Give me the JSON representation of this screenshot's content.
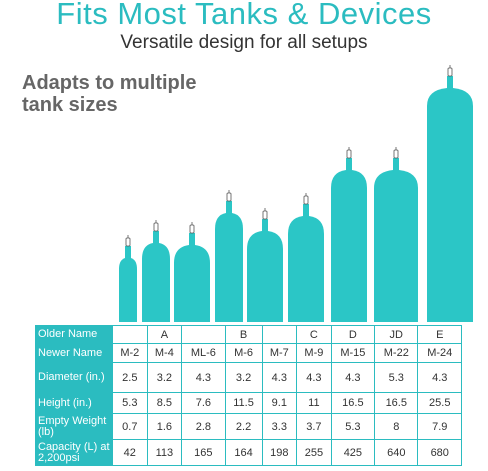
{
  "header": {
    "title": "Fits Most Tanks & Devices",
    "subtitle": "Versatile design for all setups"
  },
  "callout": "Adapts to multiple tank sizes",
  "table": {
    "rows": [
      {
        "label": "Older Name",
        "cells": [
          null,
          "A",
          null,
          "B",
          null,
          "C",
          "D",
          "JD",
          "E"
        ]
      },
      {
        "label": "Newer Name",
        "cells": [
          "M-2",
          "M-4",
          "ML-6",
          "M-6",
          "M-7",
          "M-9",
          "M-15",
          "M-22",
          "M-24"
        ]
      },
      {
        "label": "Diameter (in.)",
        "cells": [
          2.5,
          3.2,
          4.3,
          3.2,
          4.3,
          4.3,
          4.3,
          5.3,
          4.3
        ]
      },
      {
        "label": "Height (in.)",
        "cells": [
          5.3,
          8.5,
          7.6,
          11.5,
          9.1,
          11,
          16.5,
          16.5,
          25.5
        ]
      },
      {
        "label": "Empty Weight (lb)",
        "cells": [
          0.7,
          1.6,
          2.8,
          2.2,
          3.3,
          3.7,
          5.3,
          8,
          7.9
        ]
      },
      {
        "label": "Capacity (L) at 2,200psi",
        "cells": [
          42,
          113,
          165,
          164,
          198,
          255,
          425,
          640,
          680
        ]
      }
    ]
  }
}
